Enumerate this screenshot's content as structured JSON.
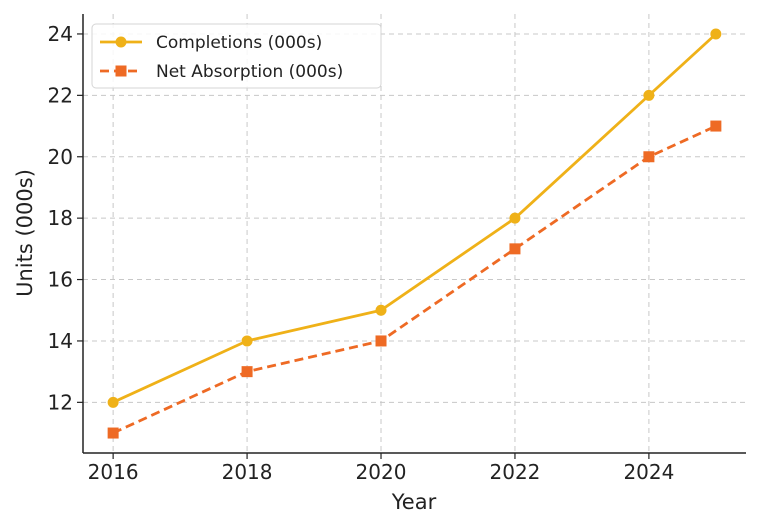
{
  "chart_data": {
    "type": "line",
    "x": [
      2016,
      2018,
      2020,
      2022,
      2024,
      2025
    ],
    "series": [
      {
        "name": "Completions (000s)",
        "values": [
          12,
          14,
          15,
          18,
          22,
          24
        ],
        "color": "#efb118",
        "marker": "circle",
        "line_style": "solid"
      },
      {
        "name": "Net Absorption (000s)",
        "values": [
          11,
          13,
          14,
          17,
          20,
          21
        ],
        "color": "#ee6a24",
        "marker": "square",
        "line_style": "dashed"
      }
    ],
    "xticks": [
      2016,
      2018,
      2020,
      2022,
      2024
    ],
    "yticks": [
      12,
      14,
      16,
      18,
      20,
      22,
      24
    ],
    "xlim": [
      2015.55,
      2025.45
    ],
    "ylim": [
      10.35,
      24.65
    ],
    "xlabel": "Year",
    "ylabel": "Units (000s)",
    "grid": true,
    "legend_position": "top-left"
  }
}
